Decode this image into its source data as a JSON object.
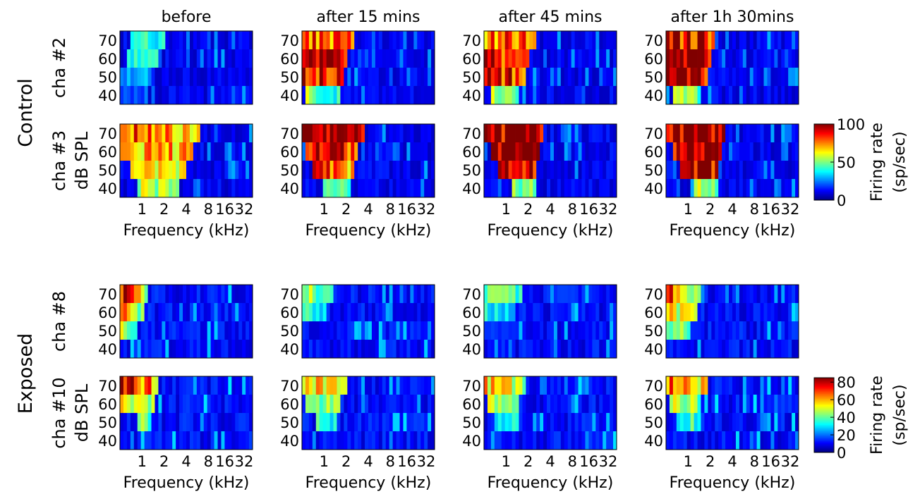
{
  "chart_data": {
    "type": "heatmap",
    "column_titles": [
      "before",
      "after 15 mins",
      "after 45 mins",
      "after 1h 30mins"
    ],
    "group_labels": [
      "Control",
      "Exposed"
    ],
    "channel_labels": [
      "cha #2",
      "cha #3",
      "cha #8",
      "cha #10"
    ],
    "ylabel": "dB SPL",
    "xlabel": "Frequency (kHz)",
    "y_ticks": [
      "70",
      "60",
      "50",
      "40"
    ],
    "x_ticks": [
      "1",
      "2",
      "4",
      "8",
      "16",
      "32"
    ],
    "y_levels_db": [
      70,
      60,
      50,
      40
    ],
    "frequency_range_khz": [
      0.5,
      32
    ],
    "num_frequency_bins": 38,
    "colormap": "jet",
    "colorbars": [
      {
        "group": "Control",
        "label_line1": "Firing rate",
        "label_line2": "(sp/sec)",
        "range": [
          0,
          100
        ],
        "ticks": [
          "100",
          "50",
          "0"
        ],
        "tick_values": [
          100,
          50,
          0
        ]
      },
      {
        "group": "Exposed",
        "label_line1": "Firing rate",
        "label_line2": "(sp/sec)",
        "range": [
          0,
          85
        ],
        "ticks": [
          "80",
          "60",
          "40",
          "20",
          "0"
        ],
        "tick_values": [
          80,
          60,
          40,
          20,
          0
        ]
      }
    ],
    "rows": [
      {
        "channel": "cha #2",
        "group": "Control",
        "vmax": 100,
        "profiles": [
          {
            "column": "before",
            "levels": [
              [
                3,
                12,
                40,
                40
              ],
              [
                2,
                10,
                38,
                38
              ],
              [
                0,
                8,
                28,
                28
              ],
              [
                0,
                5,
                20,
                20
              ]
            ]
          },
          {
            "column": "after 15 mins",
            "levels": [
              [
                0,
                14,
                78,
                82
              ],
              [
                0,
                12,
                88,
                85
              ],
              [
                0,
                11,
                88,
                80
              ],
              [
                1,
                10,
                55,
                40
              ]
            ]
          },
          {
            "column": "after 45 mins",
            "levels": [
              [
                0,
                14,
                78,
                80
              ],
              [
                0,
                12,
                90,
                85
              ],
              [
                0,
                11,
                92,
                80
              ],
              [
                2,
                9,
                55,
                45
              ]
            ]
          },
          {
            "column": "after 1h 30mins",
            "levels": [
              [
                0,
                13,
                85,
                85
              ],
              [
                0,
                12,
                98,
                90
              ],
              [
                0,
                11,
                95,
                85
              ],
              [
                2,
                9,
                55,
                45
              ]
            ]
          }
        ]
      },
      {
        "channel": "cha #3",
        "group": "Control",
        "vmax": 100,
        "profiles": [
          {
            "column": "before",
            "levels": [
              [
                0,
                22,
                80,
                70
              ],
              [
                0,
                20,
                75,
                68
              ],
              [
                3,
                18,
                70,
                62
              ],
              [
                5,
                16,
                55,
                48
              ]
            ]
          },
          {
            "column": "after 15 mins",
            "levels": [
              [
                0,
                17,
                100,
                100
              ],
              [
                1,
                15,
                90,
                82
              ],
              [
                3,
                14,
                85,
                65
              ],
              [
                6,
                13,
                50,
                40
              ]
            ]
          },
          {
            "column": "after 45 mins",
            "levels": [
              [
                0,
                16,
                100,
                100
              ],
              [
                2,
                15,
                100,
                100
              ],
              [
                4,
                14,
                100,
                95
              ],
              [
                8,
                14,
                55,
                45
              ]
            ]
          },
          {
            "column": "after 1h 30mins",
            "levels": [
              [
                0,
                16,
                100,
                100
              ],
              [
                2,
                15,
                100,
                100
              ],
              [
                4,
                14,
                100,
                95
              ],
              [
                8,
                14,
                55,
                45
              ]
            ]
          }
        ]
      },
      {
        "channel": "cha #8",
        "group": "Exposed",
        "vmax": 85,
        "profiles": [
          {
            "column": "before",
            "levels": [
              [
                0,
                7,
                78,
                45
              ],
              [
                0,
                6,
                62,
                40
              ],
              [
                0,
                4,
                45,
                38
              ],
              [
                0,
                1,
                12,
                12
              ]
            ]
          },
          {
            "column": "after 15 mins",
            "levels": [
              [
                0,
                8,
                45,
                38
              ],
              [
                0,
                6,
                35,
                30
              ],
              [
                0,
                1,
                12,
                12
              ],
              [
                0,
                1,
                10,
                10
              ]
            ]
          },
          {
            "column": "after 45 mins",
            "levels": [
              [
                0,
                10,
                42,
                35
              ],
              [
                0,
                8,
                32,
                28
              ],
              [
                0,
                2,
                14,
                14
              ],
              [
                0,
                1,
                10,
                10
              ]
            ]
          },
          {
            "column": "after 1h 30mins",
            "levels": [
              [
                0,
                9,
                72,
                45
              ],
              [
                0,
                8,
                58,
                42
              ],
              [
                0,
                6,
                45,
                38
              ],
              [
                0,
                1,
                12,
                12
              ]
            ]
          }
        ]
      },
      {
        "channel": "cha #10",
        "group": "Exposed",
        "vmax": 85,
        "profiles": [
          {
            "column": "before",
            "levels": [
              [
                0,
                10,
                80,
                58
              ],
              [
                0,
                9,
                58,
                48
              ],
              [
                5,
                8,
                42,
                38
              ],
              [
                0,
                1,
                12,
                12
              ]
            ]
          },
          {
            "column": "after 15 mins",
            "levels": [
              [
                0,
                12,
                60,
                50
              ],
              [
                1,
                10,
                45,
                40
              ],
              [
                4,
                9,
                35,
                32
              ],
              [
                0,
                1,
                12,
                12
              ]
            ]
          },
          {
            "column": "after 45 mins",
            "levels": [
              [
                0,
                11,
                58,
                48
              ],
              [
                1,
                9,
                45,
                40
              ],
              [
                4,
                9,
                35,
                32
              ],
              [
                0,
                1,
                12,
                12
              ]
            ]
          },
          {
            "column": "after 1h 30mins",
            "levels": [
              [
                0,
                11,
                65,
                52
              ],
              [
                1,
                9,
                48,
                42
              ],
              [
                4,
                9,
                38,
                35
              ],
              [
                0,
                1,
                12,
                12
              ]
            ]
          }
        ]
      }
    ]
  }
}
